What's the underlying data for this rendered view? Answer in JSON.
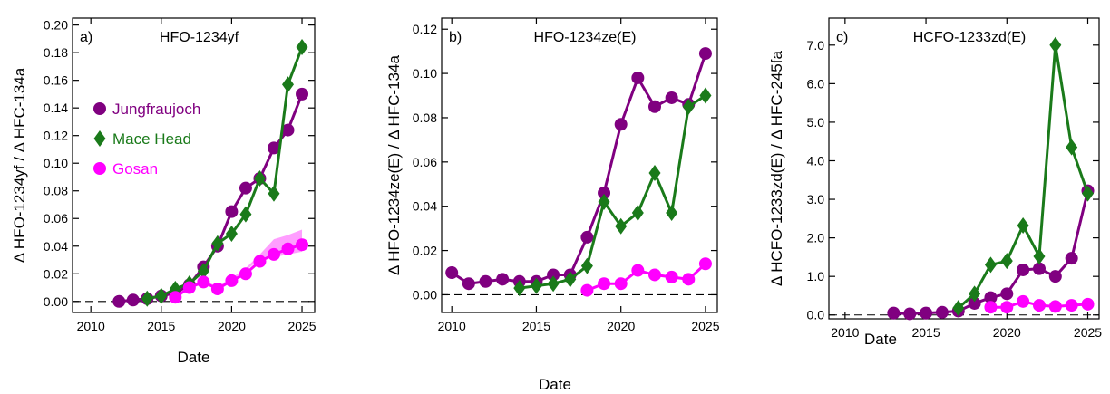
{
  "figure": {
    "bottom_label": "Date"
  },
  "legend": [
    {
      "label": "Jungfraujoch",
      "color": "#800080",
      "marker": "circle"
    },
    {
      "label": "Mace Head",
      "color": "#1a7a1a",
      "marker": "diamond"
    },
    {
      "label": "Gosan",
      "color": "#ff00ff",
      "marker": "circle"
    }
  ],
  "chart_data": [
    {
      "type": "line",
      "panel_label": "a)",
      "title": "HFO-1234yf",
      "xlabel": "Date",
      "ylabel": "Δ HFO-1234yf / Δ HFC-134a",
      "xlim": [
        2008.7,
        2025.9
      ],
      "ylim": [
        -0.008,
        0.205
      ],
      "xticks": [
        2010,
        2015,
        2020,
        2025
      ],
      "yticks": [
        0.0,
        0.02,
        0.04,
        0.06,
        0.08,
        0.1,
        0.12,
        0.14,
        0.16,
        0.18,
        0.2
      ],
      "ytick_labels": [
        "0.00",
        "0.02",
        "0.04",
        "0.06",
        "0.08",
        "0.10",
        "0.12",
        "0.14",
        "0.16",
        "0.18",
        "0.20"
      ],
      "reference_line": 0,
      "legend_placement": "upper-left",
      "series": [
        {
          "name": "Jungfraujoch",
          "x": [
            2012,
            2013,
            2014,
            2015,
            2016,
            2017,
            2018,
            2019,
            2020,
            2021,
            2022,
            2023,
            2024,
            2025
          ],
          "y": [
            0.0,
            0.001,
            0.002,
            0.004,
            0.006,
            0.012,
            0.025,
            0.04,
            0.065,
            0.082,
            0.089,
            0.111,
            0.124,
            0.15
          ]
        },
        {
          "name": "Mace Head",
          "x": [
            2014,
            2015,
            2016,
            2017,
            2018,
            2019,
            2020,
            2021,
            2022,
            2023,
            2024,
            2025
          ],
          "y": [
            0.002,
            0.004,
            0.009,
            0.013,
            0.022,
            0.042,
            0.049,
            0.063,
            0.089,
            0.078,
            0.157,
            0.184
          ]
        },
        {
          "name": "Gosan",
          "x": [
            2016,
            2017,
            2018,
            2019,
            2020,
            2021,
            2022,
            2023,
            2024,
            2025
          ],
          "y": [
            0.003,
            0.01,
            0.014,
            0.009,
            0.015,
            0.02,
            0.029,
            0.034,
            0.038,
            0.041
          ],
          "band_lower": [
            0.003,
            0.01,
            0.013,
            0.009,
            0.014,
            0.022,
            0.031,
            0.032,
            0.034,
            0.036
          ],
          "band_upper": [
            0.004,
            0.011,
            0.015,
            0.011,
            0.017,
            0.024,
            0.034,
            0.045,
            0.048,
            0.052
          ]
        }
      ]
    },
    {
      "type": "line",
      "panel_label": "b)",
      "title": "HFO-1234ze(E)",
      "xlabel": "",
      "ylabel": "Δ HFO-1234ze(E) / Δ HFC-134a",
      "xlim": [
        2009.4,
        2025.7
      ],
      "ylim": [
        -0.008,
        0.125
      ],
      "xticks": [
        2010,
        2015,
        2020,
        2025
      ],
      "yticks": [
        0.0,
        0.02,
        0.04,
        0.06,
        0.08,
        0.1,
        0.12
      ],
      "ytick_labels": [
        "0.00",
        "0.02",
        "0.04",
        "0.06",
        "0.08",
        "0.10",
        "0.12"
      ],
      "reference_line": 0,
      "series": [
        {
          "name": "Jungfraujoch",
          "x": [
            2010,
            2011,
            2012,
            2013,
            2014,
            2015,
            2016,
            2017,
            2018,
            2019,
            2020,
            2021,
            2022,
            2023,
            2024,
            2025
          ],
          "y": [
            0.01,
            0.005,
            0.006,
            0.007,
            0.006,
            0.006,
            0.009,
            0.009,
            0.026,
            0.046,
            0.077,
            0.098,
            0.085,
            0.089,
            0.086,
            0.109
          ]
        },
        {
          "name": "Mace Head",
          "x": [
            2014,
            2015,
            2016,
            2017,
            2018,
            2019,
            2020,
            2021,
            2022,
            2023,
            2024,
            2025
          ],
          "y": [
            0.003,
            0.004,
            0.005,
            0.007,
            0.013,
            0.042,
            0.031,
            0.037,
            0.055,
            0.037,
            0.085,
            0.09
          ]
        },
        {
          "name": "Gosan",
          "x": [
            2018,
            2019,
            2020,
            2021,
            2022,
            2023,
            2024,
            2025
          ],
          "y": [
            0.002,
            0.005,
            0.005,
            0.011,
            0.009,
            0.008,
            0.007,
            0.014
          ]
        }
      ]
    },
    {
      "type": "line",
      "panel_label": "c)",
      "title": "HCFO-1233zd(E)",
      "xlabel": "Date",
      "ylabel": "Δ HCFO-1233zd(E) / Δ HFC-245fa",
      "xlim": [
        2009.0,
        2025.7
      ],
      "ylim": [
        -0.1,
        7.7
      ],
      "xticks": [
        2010,
        2015,
        2020,
        2025
      ],
      "yticks": [
        0,
        1,
        2,
        3,
        4,
        5,
        6,
        7
      ],
      "ytick_labels": [
        "0.0",
        "1.0",
        "2.0",
        "3.0",
        "4.0",
        "5.0",
        "6.0",
        "7.0"
      ],
      "reference_line": 0,
      "series": [
        {
          "name": "Jungfraujoch",
          "x": [
            2013,
            2014,
            2015,
            2016,
            2017,
            2018,
            2019,
            2020,
            2021,
            2022,
            2023,
            2024,
            2025
          ],
          "y": [
            0.05,
            0.03,
            0.05,
            0.07,
            0.1,
            0.3,
            0.45,
            0.55,
            1.17,
            1.2,
            1.0,
            1.47,
            3.22
          ]
        },
        {
          "name": "Mace Head",
          "x": [
            2017,
            2018,
            2019,
            2020,
            2021,
            2022,
            2023,
            2024,
            2025
          ],
          "y": [
            0.18,
            0.55,
            1.3,
            1.4,
            2.32,
            1.52,
            7.0,
            4.35,
            3.15
          ]
        },
        {
          "name": "Gosan",
          "x": [
            2019,
            2020,
            2021,
            2022,
            2023,
            2024,
            2025
          ],
          "y": [
            0.2,
            0.2,
            0.35,
            0.25,
            0.22,
            0.25,
            0.28
          ]
        }
      ]
    }
  ]
}
